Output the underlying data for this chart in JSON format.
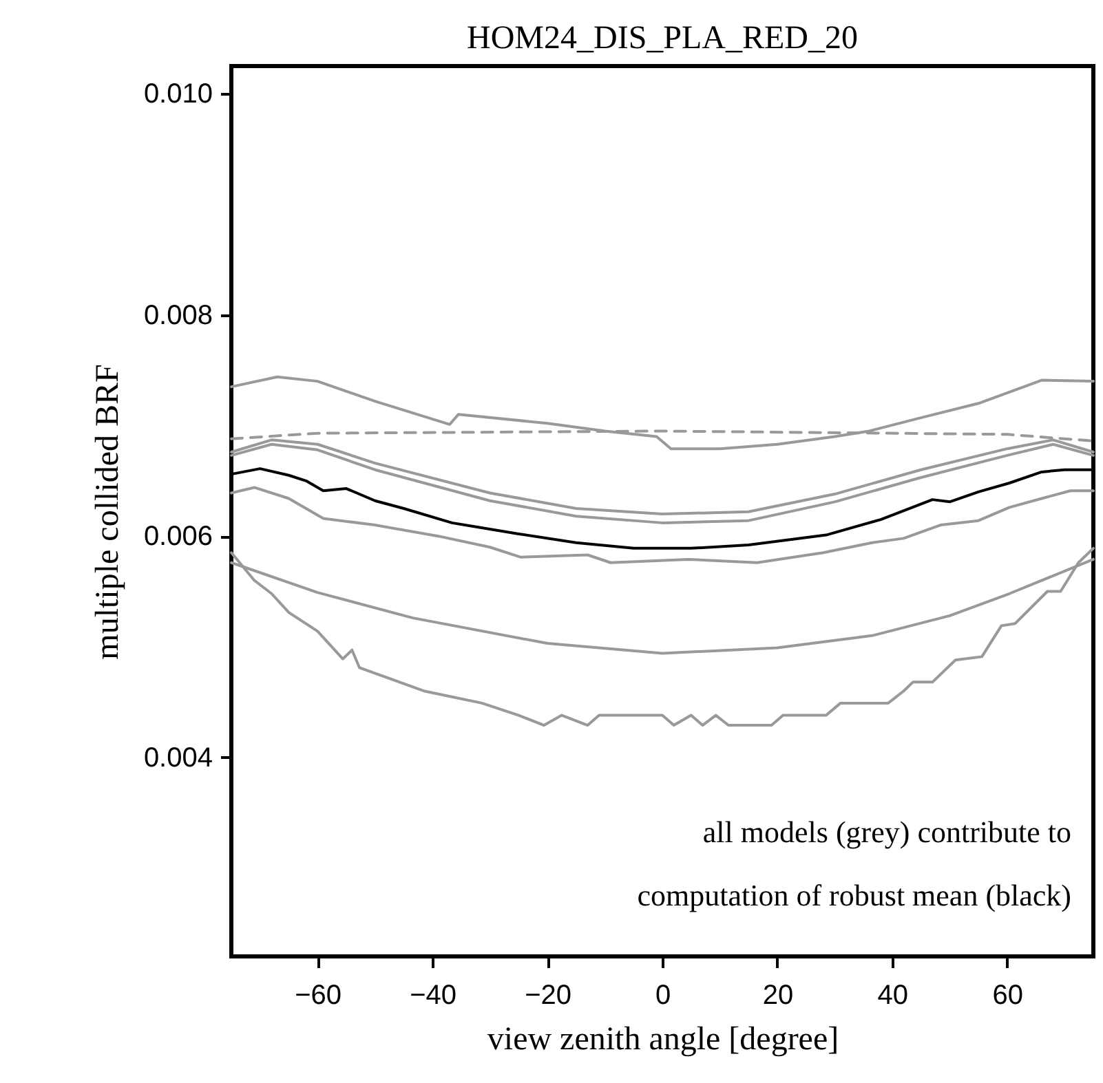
{
  "chart_data": {
    "type": "line",
    "title": "HOM24_DIS_PLA_RED_20",
    "xlabel": "view zenith angle [degree]",
    "ylabel": "multiple collided BRF",
    "annotations": [
      "all models (grey) contribute to",
      "computation of robust mean (black)"
    ],
    "xlim": [
      -75,
      75
    ],
    "xticks": [
      -60,
      -40,
      -20,
      0,
      20,
      40,
      60
    ],
    "ylim": [
      0.0022,
      0.01025
    ],
    "yticks": [
      {
        "value": 0.004,
        "label": "0.004"
      },
      {
        "value": 0.006,
        "label": "0.006"
      },
      {
        "value": 0.008,
        "label": "0.008"
      },
      {
        "value": 0.01,
        "label": "0.010"
      }
    ],
    "grid": false,
    "marker": "none",
    "series": [
      {
        "color": "#999999",
        "line_style": "solid",
        "x": [
          -75,
          -67,
          -60,
          -50,
          -37,
          -35.5,
          -20,
          -10,
          -1,
          1.5,
          10,
          20,
          30,
          36,
          45,
          55,
          66,
          75
        ],
        "values": [
          0.00735,
          0.00744,
          0.0074,
          0.00722,
          0.00701,
          0.0071,
          0.00702,
          0.00695,
          0.0069,
          0.00679,
          0.00679,
          0.00683,
          0.0069,
          0.00695,
          0.00707,
          0.0072,
          0.00741,
          0.0074
        ]
      },
      {
        "color": "#999999",
        "line_style": "dashed",
        "x": [
          -75,
          -60,
          0,
          60,
          75
        ],
        "values": [
          0.00688,
          0.00693,
          0.00695,
          0.00692,
          0.00686
        ]
      },
      {
        "color": "#999999",
        "line_style": "solid",
        "x": [
          -75,
          -68,
          -60,
          -50,
          -30,
          -15,
          0,
          15,
          30,
          45,
          60,
          68,
          75
        ],
        "values": [
          0.00676,
          0.00687,
          0.00683,
          0.00666,
          0.00639,
          0.00625,
          0.0062,
          0.00622,
          0.00638,
          0.0066,
          0.00679,
          0.00687,
          0.00676
        ]
      },
      {
        "color": "#999999",
        "line_style": "solid",
        "x": [
          -75,
          -68,
          -60,
          -50,
          -30,
          -15,
          0,
          15,
          30,
          45,
          60,
          68,
          75
        ],
        "values": [
          0.00673,
          0.00683,
          0.00678,
          0.0066,
          0.00632,
          0.00618,
          0.00612,
          0.00614,
          0.00631,
          0.00653,
          0.00673,
          0.00683,
          0.00673
        ]
      },
      {
        "color": "#999999",
        "line_style": "solid",
        "x": [
          -75,
          -71,
          -65,
          -59,
          -50,
          -39,
          -30,
          -24.7,
          -13,
          -9,
          4.5,
          16.5,
          28,
          36.5,
          42,
          48.4,
          55,
          60.4,
          66,
          71,
          75
        ],
        "values": [
          0.00639,
          0.00644,
          0.00634,
          0.00616,
          0.0061,
          0.006,
          0.0059,
          0.00581,
          0.00583,
          0.00576,
          0.00579,
          0.00576,
          0.00585,
          0.00594,
          0.00598,
          0.0061,
          0.00614,
          0.00626,
          0.00634,
          0.00641,
          0.00641
        ]
      },
      {
        "color": "#999999",
        "line_style": "solid",
        "x": [
          -75,
          -60,
          -43.4,
          -20,
          0,
          20,
          36.5,
          50,
          60.4,
          75
        ],
        "values": [
          0.00576,
          0.00549,
          0.00526,
          0.00503,
          0.00494,
          0.00499,
          0.0051,
          0.00528,
          0.00548,
          0.00579
        ]
      },
      {
        "color": "#999999",
        "line_style": "solid",
        "x": [
          -75,
          -71,
          -68,
          -65,
          -60,
          -55.6,
          -54,
          -52.7,
          -41.5,
          -31.4,
          -25,
          -20.6,
          -17.5,
          -13,
          -11,
          0,
          2,
          5,
          7,
          9.3,
          11.5,
          19,
          21,
          28.5,
          31,
          39.3,
          42,
          43.6,
          47,
          51,
          55.6,
          59,
          61.4,
          67,
          69.3,
          72.4,
          75
        ],
        "values": [
          0.00585,
          0.0056,
          0.00548,
          0.00531,
          0.00514,
          0.00489,
          0.00497,
          0.00481,
          0.0046,
          0.00449,
          0.00438,
          0.00429,
          0.00438,
          0.00429,
          0.00438,
          0.00438,
          0.00429,
          0.00438,
          0.00429,
          0.00438,
          0.00429,
          0.00429,
          0.00438,
          0.00438,
          0.00449,
          0.00449,
          0.0046,
          0.00468,
          0.00468,
          0.00488,
          0.00491,
          0.00519,
          0.00521,
          0.0055,
          0.0055,
          0.00576,
          0.00589
        ]
      },
      {
        "color": "#000000",
        "line_style": "solid",
        "x": [
          -75,
          -70,
          -65,
          -62,
          -59,
          -55,
          -50,
          -45,
          -36.6,
          -25,
          -15,
          -5,
          5,
          15,
          28.5,
          38,
          47,
          50,
          55,
          60.4,
          66,
          70,
          75
        ],
        "values": [
          0.00656,
          0.00661,
          0.00655,
          0.0065,
          0.00641,
          0.00643,
          0.00632,
          0.00625,
          0.00612,
          0.00602,
          0.00594,
          0.00589,
          0.00589,
          0.00592,
          0.00601,
          0.00615,
          0.00633,
          0.00631,
          0.0064,
          0.00648,
          0.00658,
          0.0066,
          0.0066
        ]
      }
    ]
  }
}
